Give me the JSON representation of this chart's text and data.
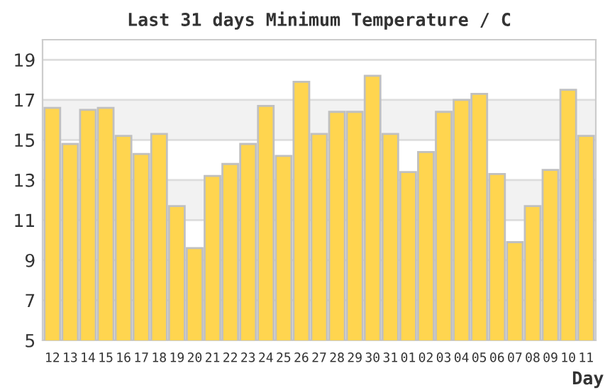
{
  "chart_data": {
    "type": "bar",
    "title": "Last 31 days Minimum Temperature / C",
    "xlabel": "Day",
    "categories": [
      "12",
      "13",
      "14",
      "15",
      "16",
      "17",
      "18",
      "19",
      "20",
      "21",
      "22",
      "23",
      "24",
      "25",
      "26",
      "27",
      "28",
      "29",
      "30",
      "31",
      "01",
      "02",
      "03",
      "04",
      "05",
      "06",
      "07",
      "08",
      "09",
      "10",
      "11"
    ],
    "values": [
      16.6,
      14.8,
      16.5,
      16.6,
      15.2,
      14.3,
      15.3,
      11.7,
      9.6,
      13.2,
      13.8,
      14.8,
      16.7,
      14.2,
      17.9,
      15.3,
      16.4,
      16.4,
      18.2,
      15.3,
      13.4,
      14.4,
      16.4,
      17.0,
      17.3,
      13.3,
      9.9,
      11.7,
      13.5,
      17.5,
      15.2
    ],
    "color": "#ffd54f",
    "ylim": [
      5,
      20
    ],
    "yticks": [
      5,
      7,
      9,
      11,
      13,
      15,
      17,
      19
    ],
    "grid": "y",
    "bands": [
      {
        "axis": "y",
        "from": 15,
        "to": 17,
        "color": "#f2f2f2"
      },
      {
        "axis": "y",
        "from": 11,
        "to": 13,
        "color": "#f2f2f2"
      }
    ]
  }
}
